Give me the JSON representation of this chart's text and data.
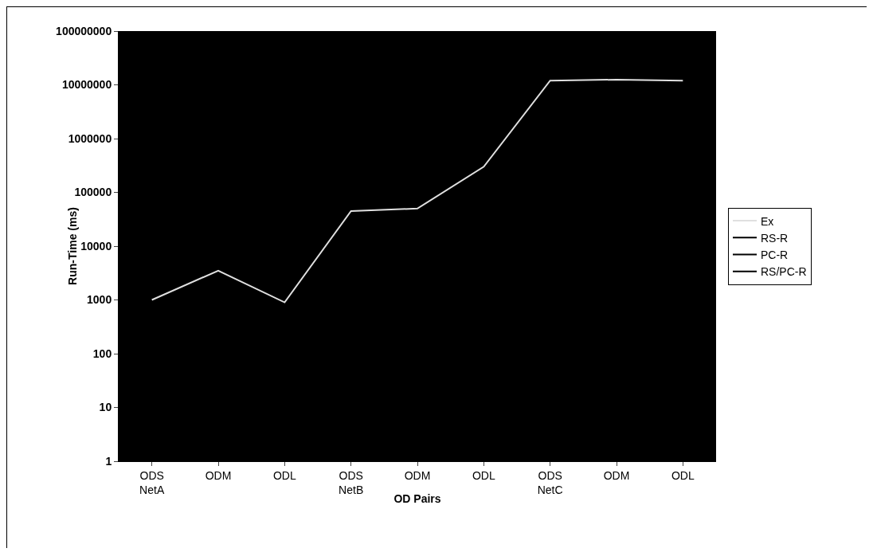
{
  "chart_data": {
    "type": "line",
    "xlabel": "OD Pairs",
    "ylabel": "Run-Time (ms)",
    "categories": [
      "ODS\nNetA",
      "ODM",
      "ODL",
      "ODS\nNetB",
      "ODM",
      "ODL",
      "ODS\nNetC",
      "ODM",
      "ODL"
    ],
    "series": [
      {
        "name": "Ex",
        "color": "#e0e0e0",
        "values": [
          1000,
          3500,
          900,
          45000,
          50000,
          300000,
          12000000,
          12500000,
          12000000
        ]
      },
      {
        "name": "RS-R",
        "color": "#000000",
        "values": [
          null,
          null,
          null,
          null,
          null,
          null,
          null,
          null,
          null
        ]
      },
      {
        "name": "PC-R",
        "color": "#000000",
        "values": [
          null,
          null,
          null,
          null,
          null,
          null,
          null,
          null,
          null
        ]
      },
      {
        "name": "RS/PC-R",
        "color": "#000000",
        "values": [
          null,
          null,
          null,
          null,
          null,
          null,
          null,
          null,
          null
        ]
      }
    ],
    "log": true,
    "ylim": [
      1,
      100000000
    ],
    "yticks": [
      1,
      10,
      100,
      1000,
      10000,
      100000,
      1000000,
      10000000,
      100000000
    ],
    "grid": false,
    "legend": "right",
    "marker": "none",
    "line_style": "solid"
  }
}
